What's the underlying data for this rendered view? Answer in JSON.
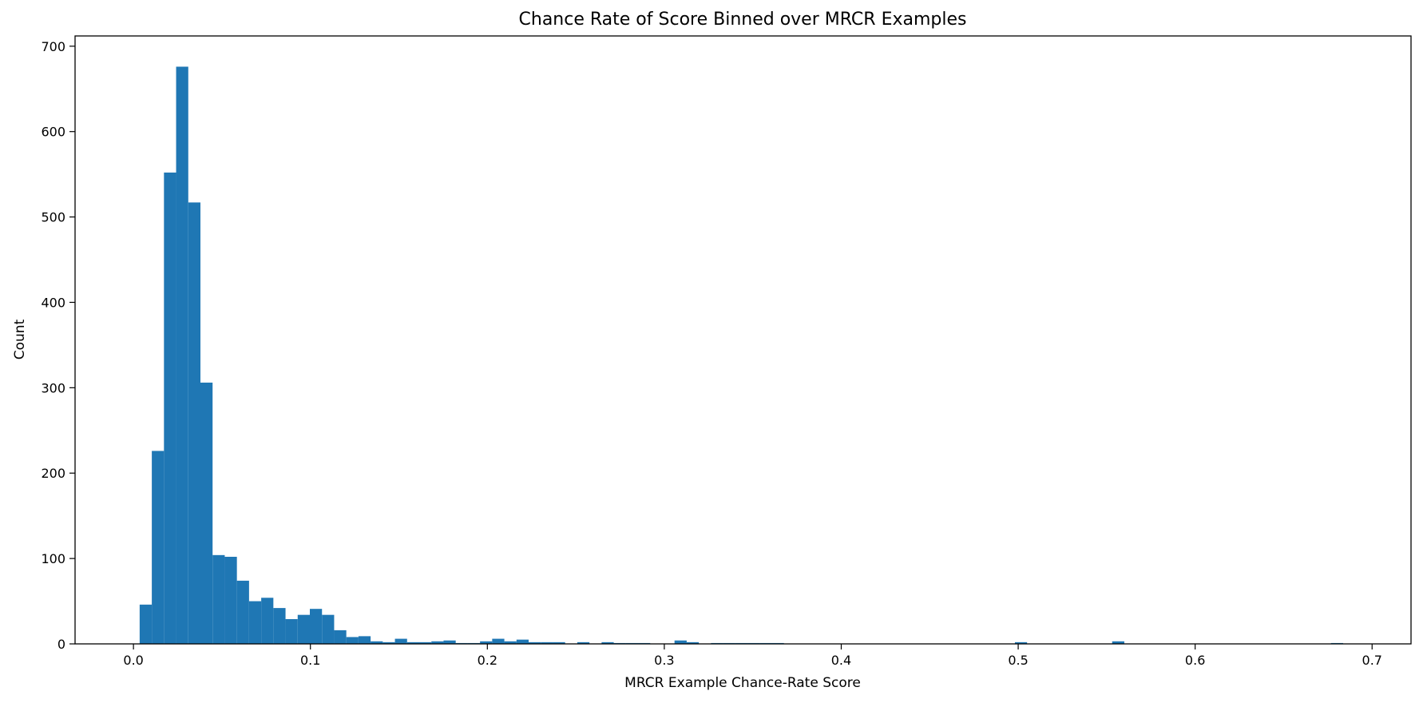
{
  "chart_data": {
    "type": "bar",
    "title": "Chance Rate of Score Binned over MRCR Examples",
    "xlabel": "MRCR Example Chance-Rate Score",
    "ylabel": "Count",
    "xlim": [
      -0.033,
      0.722
    ],
    "ylim": [
      0,
      712
    ],
    "xticks": [
      "0.0",
      "0.1",
      "0.2",
      "0.3",
      "0.4",
      "0.5",
      "0.6",
      "0.7"
    ],
    "yticks": [
      "0",
      "100",
      "200",
      "300",
      "400",
      "500",
      "600",
      "700"
    ],
    "grid": false,
    "bar_color": "#1f77b4",
    "bin_start": 0.0035,
    "bin_width": 0.00687,
    "values": [
      46,
      226,
      552,
      676,
      517,
      306,
      104,
      102,
      74,
      50,
      54,
      42,
      29,
      34,
      41,
      34,
      16,
      8,
      9,
      3,
      2,
      6,
      2,
      2,
      3,
      4,
      1,
      1,
      3,
      6,
      3,
      5,
      2,
      2,
      2,
      0,
      2,
      0,
      2,
      1,
      1,
      1,
      0,
      0,
      4,
      2,
      0,
      1,
      1,
      1,
      1,
      1,
      1,
      0,
      0,
      0,
      0,
      0,
      0,
      0,
      0,
      0,
      0,
      0,
      0,
      0,
      0,
      0,
      0,
      0,
      0,
      0,
      2,
      0,
      0,
      0,
      0,
      0,
      0,
      0,
      3,
      0,
      0,
      0,
      0,
      0,
      0,
      0,
      0,
      0,
      0,
      0,
      0,
      0,
      0,
      0,
      0,
      0,
      1,
      0
    ]
  }
}
